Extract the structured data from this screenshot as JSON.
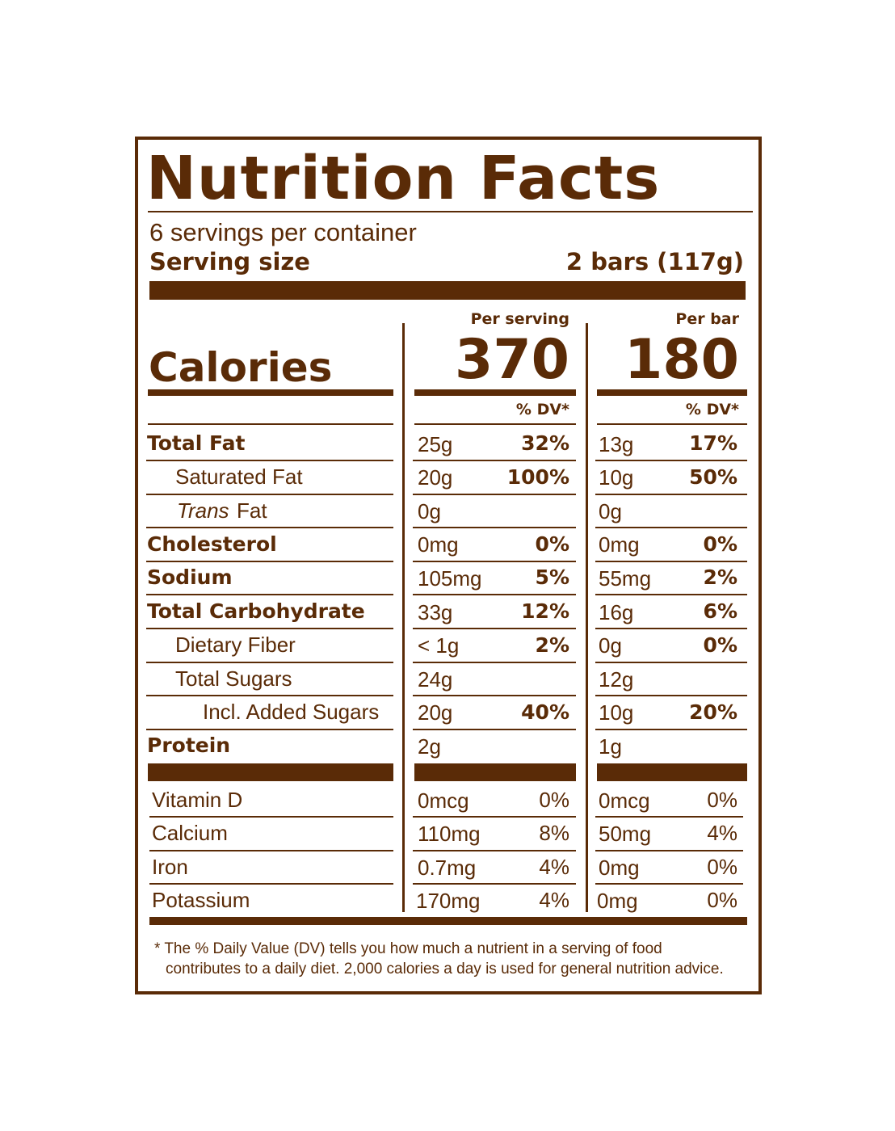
{
  "title": "Nutrition Facts",
  "servings": "6 servings per container",
  "serving_size": {
    "label": "Serving size",
    "value": "2 bars (117g)"
  },
  "columns": [
    "Per serving",
    "Per bar"
  ],
  "calories": {
    "label": "Calories",
    "values": [
      "370",
      "180"
    ]
  },
  "dv_header": [
    "% DV*",
    "% DV*"
  ],
  "nutrients": [
    {
      "name": "Total Fat",
      "amounts": [
        "25g",
        "13g"
      ],
      "dv": [
        "32%",
        "17%"
      ]
    },
    {
      "name": "Saturated Fat",
      "amounts": [
        "20g",
        "10g"
      ],
      "dv": [
        "100%",
        "50%"
      ]
    },
    {
      "prefix": "Trans",
      "name": "Fat",
      "amounts": [
        "0g",
        "0g"
      ],
      "dv": [
        null,
        null
      ]
    },
    {
      "name": "Cholesterol",
      "amounts": [
        "0mg",
        "0mg"
      ],
      "dv": [
        "0%",
        "0%"
      ]
    },
    {
      "name": "Sodium",
      "amounts": [
        "105mg",
        "55mg"
      ],
      "dv": [
        "5%",
        "2%"
      ]
    },
    {
      "name": "Total Carbohydrate",
      "amounts": [
        "33g",
        "16g"
      ],
      "dv": [
        "12%",
        "6%"
      ]
    },
    {
      "name": "Dietary Fiber",
      "amounts": [
        "< 1g",
        "0g"
      ],
      "dv": [
        "2%",
        "0%"
      ]
    },
    {
      "name": "Total Sugars",
      "amounts": [
        "24g",
        "12g"
      ],
      "dv": [
        null,
        null
      ]
    },
    {
      "name": "Incl. Added Sugars",
      "amounts": [
        "20g",
        "10g"
      ],
      "dv": [
        "40%",
        "20%"
      ]
    },
    {
      "name": "Protein",
      "amounts": [
        "2g",
        "1g"
      ],
      "dv": [
        null,
        null
      ]
    }
  ],
  "vitamins": [
    {
      "name": "Vitamin D",
      "amounts": [
        "0mcg",
        "0mcg"
      ],
      "dv": [
        "0%",
        "0%"
      ]
    },
    {
      "name": "Calcium",
      "amounts": [
        "110mg",
        "50mg"
      ],
      "dv": [
        "8%",
        "4%"
      ]
    },
    {
      "name": "Iron",
      "amounts": [
        "0.7mg",
        "0mg"
      ],
      "dv": [
        "4%",
        "0%"
      ]
    },
    {
      "name": "Potassium",
      "amounts": [
        "170mg",
        "0mg"
      ],
      "dv": [
        "4%",
        "0%"
      ]
    }
  ],
  "footnote": [
    "* The % Daily Value (DV) tells you how much a nutrient in a serving of food",
    "contributes to a daily diet. 2,000 calories a day is used for general nutrition advice."
  ]
}
